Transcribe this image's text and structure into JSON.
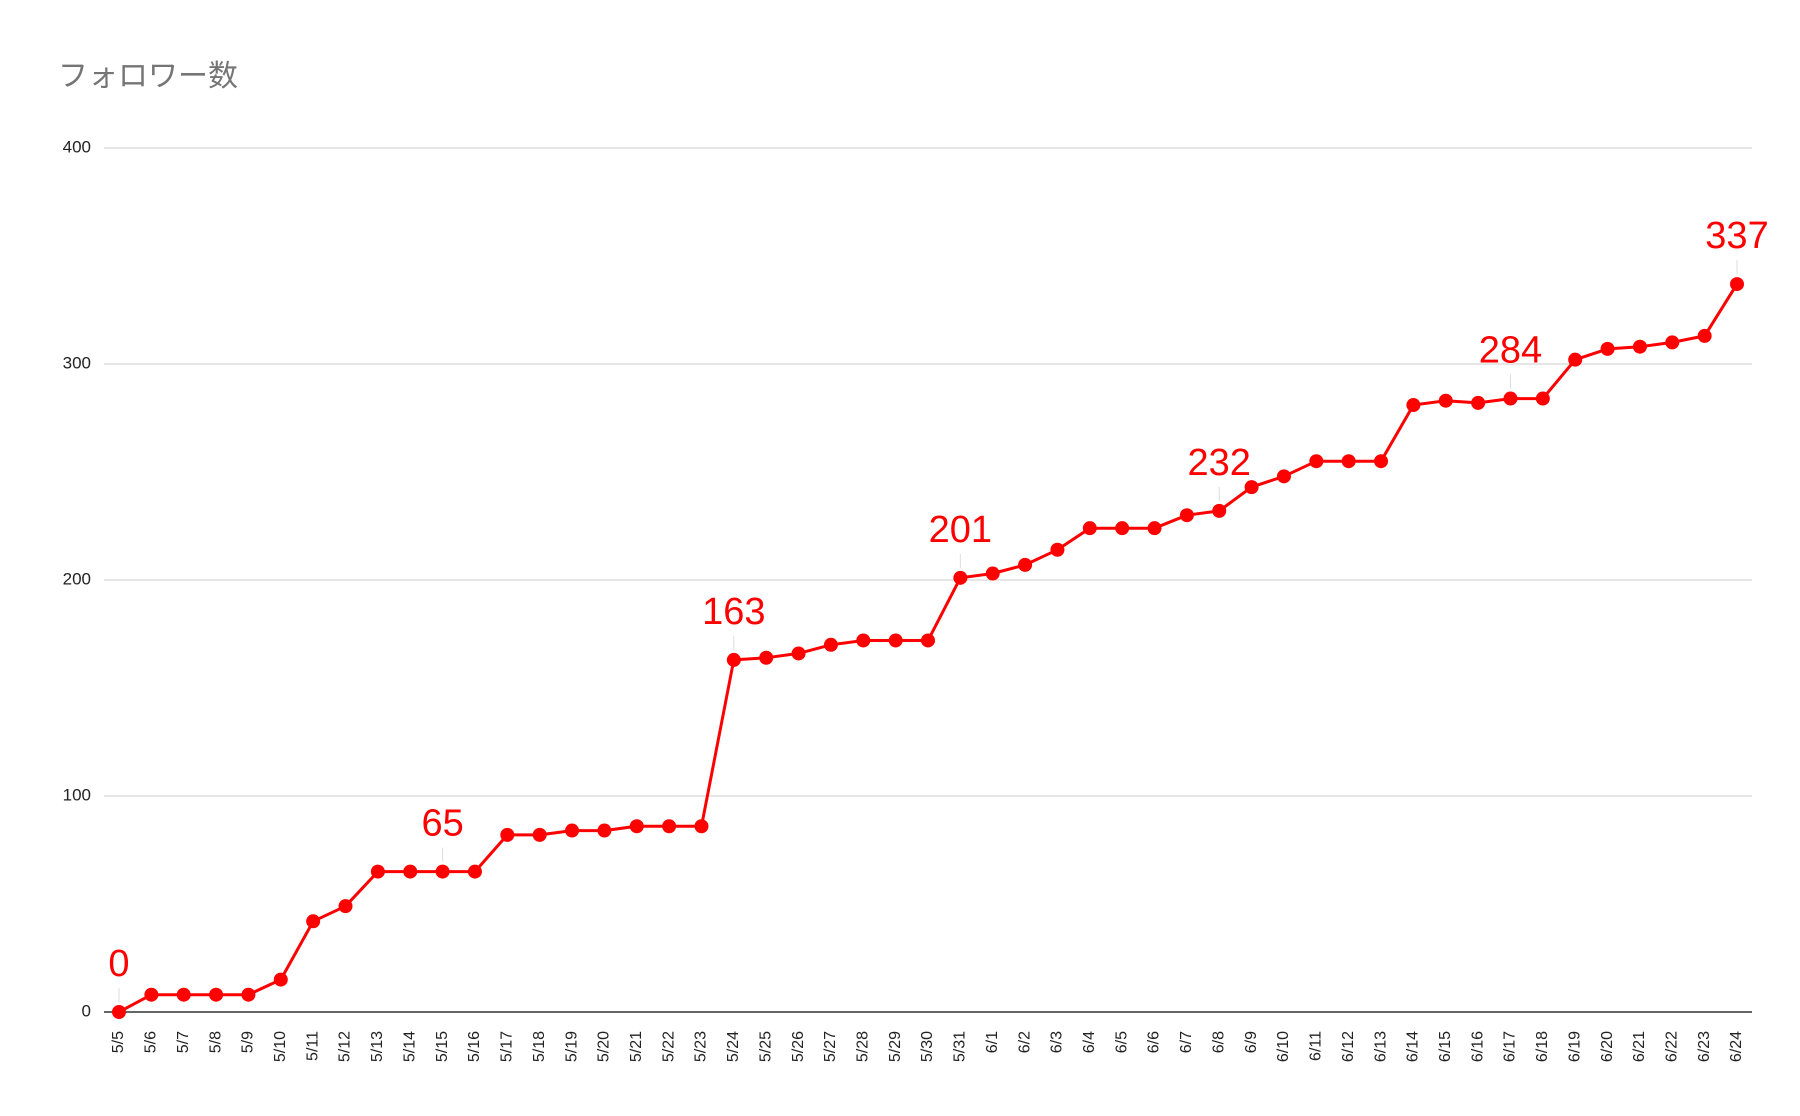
{
  "chart_data": {
    "type": "line",
    "title": "フォロワー数",
    "categories": [
      "5/5",
      "5/6",
      "5/7",
      "5/8",
      "5/9",
      "5/10",
      "5/11",
      "5/12",
      "5/13",
      "5/14",
      "5/15",
      "5/16",
      "5/17",
      "5/18",
      "5/19",
      "5/20",
      "5/21",
      "5/22",
      "5/23",
      "5/24",
      "5/25",
      "5/26",
      "5/27",
      "5/28",
      "5/29",
      "5/30",
      "5/31",
      "6/1",
      "6/2",
      "6/3",
      "6/4",
      "6/5",
      "6/6",
      "6/7",
      "6/8",
      "6/9",
      "6/10",
      "6/11",
      "6/12",
      "6/13",
      "6/14",
      "6/15",
      "6/16",
      "6/17",
      "6/18",
      "6/19",
      "6/20",
      "6/21",
      "6/22",
      "6/23",
      "6/24"
    ],
    "values": [
      0,
      8,
      8,
      8,
      8,
      15,
      42,
      49,
      65,
      65,
      65,
      65,
      82,
      82,
      84,
      84,
      86,
      86,
      86,
      163,
      164,
      166,
      170,
      172,
      172,
      172,
      201,
      203,
      207,
      214,
      224,
      224,
      224,
      230,
      232,
      243,
      248,
      255,
      255,
      255,
      281,
      283,
      282,
      284,
      284,
      302,
      307,
      308,
      310,
      313,
      337
    ],
    "color": "#ff0000",
    "labeled_points": [
      0,
      10,
      19,
      26,
      34,
      43,
      50
    ],
    "ylim": [
      0,
      400
    ],
    "yticks": [
      0,
      100,
      200,
      300,
      400
    ],
    "grid": true
  }
}
